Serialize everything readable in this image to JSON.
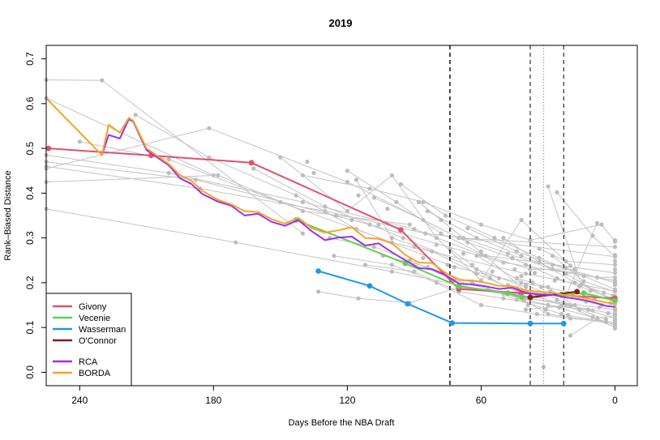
{
  "chart_data": {
    "type": "line",
    "title": "2019",
    "xlabel": "Days Before the NBA Draft",
    "ylabel": "Rank–Biased Distance",
    "xlim": [
      255,
      -10
    ],
    "ylim": [
      -0.03,
      0.73
    ],
    "x_ticks": [
      240,
      180,
      120,
      60,
      0
    ],
    "x_tick_labels": [
      "240",
      "180",
      "120",
      "60",
      "0"
    ],
    "y_ticks": [
      0.0,
      0.1,
      0.2,
      0.3,
      0.4,
      0.5,
      0.6,
      0.7
    ],
    "y_tick_labels": [
      "0.0",
      "0.1",
      "0.2",
      "0.3",
      "0.4",
      "0.5",
      "0.6",
      "0.7"
    ],
    "vertical_reference_lines": [
      {
        "x": 74,
        "style": "dashed"
      },
      {
        "x": 38,
        "style": "dashed"
      },
      {
        "x": 32,
        "style": "dotted"
      },
      {
        "x": 23,
        "style": "dashed"
      }
    ],
    "legend": {
      "position": "bottom-left"
    },
    "series": [
      {
        "name": "Givony",
        "color": "#df536b",
        "markers": true,
        "x": [
          254,
          208,
          163,
          96,
          70,
          42,
          0
        ],
        "y": [
          0.5,
          0.484,
          0.468,
          0.318,
          0.186,
          0.177,
          0.165
        ]
      },
      {
        "name": "Vecenie",
        "color": "#61d04f",
        "markers": true,
        "x": [
          143,
          94,
          70,
          48,
          42,
          24,
          14,
          0
        ],
        "y": [
          0.34,
          0.243,
          0.192,
          0.177,
          0.168,
          0.174,
          0.177,
          0.16
        ]
      },
      {
        "name": "Wasserman",
        "color": "#2297e6",
        "markers": true,
        "x": [
          133,
          110,
          93,
          73,
          38,
          23
        ],
        "y": [
          0.226,
          0.193,
          0.153,
          0.11,
          0.109,
          0.109
        ]
      },
      {
        "name": "O'Connor",
        "color": "#8b1a1a",
        "markers": true,
        "x": [
          38,
          17
        ],
        "y": [
          0.167,
          0.18
        ]
      },
      {
        "name": "RCA",
        "color": "#9f2ef0",
        "markers": false,
        "x": [
          230,
          227,
          222,
          218,
          216,
          210,
          200,
          195,
          190,
          185,
          178,
          172,
          166,
          160,
          154,
          148,
          142,
          136,
          130,
          124,
          118,
          112,
          106,
          100,
          94,
          88,
          82,
          76,
          70,
          64,
          58,
          52,
          46,
          40,
          34,
          28,
          22,
          16,
          10,
          4,
          0
        ],
        "y": [
          0.485,
          0.53,
          0.522,
          0.565,
          0.56,
          0.496,
          0.462,
          0.433,
          0.421,
          0.398,
          0.381,
          0.372,
          0.35,
          0.354,
          0.336,
          0.327,
          0.34,
          0.315,
          0.295,
          0.301,
          0.303,
          0.283,
          0.288,
          0.268,
          0.25,
          0.233,
          0.23,
          0.217,
          0.198,
          0.196,
          0.192,
          0.186,
          0.189,
          0.178,
          0.173,
          0.173,
          0.167,
          0.163,
          0.157,
          0.148,
          0.146
        ]
      },
      {
        "name": "BORDA",
        "color": "#f5a422",
        "markers": false,
        "x": [
          255,
          230,
          227,
          222,
          218,
          216,
          210,
          200,
          195,
          190,
          185,
          178,
          172,
          166,
          160,
          154,
          148,
          142,
          136,
          130,
          124,
          118,
          112,
          106,
          100,
          94,
          88,
          82,
          76,
          70,
          64,
          58,
          52,
          46,
          40,
          34,
          28,
          22,
          16,
          10,
          4,
          0
        ],
        "y": [
          0.612,
          0.485,
          0.553,
          0.535,
          0.568,
          0.562,
          0.5,
          0.465,
          0.44,
          0.428,
          0.405,
          0.385,
          0.375,
          0.36,
          0.358,
          0.342,
          0.332,
          0.345,
          0.322,
          0.312,
          0.317,
          0.324,
          0.3,
          0.298,
          0.288,
          0.262,
          0.245,
          0.244,
          0.222,
          0.206,
          0.205,
          0.2,
          0.193,
          0.192,
          0.183,
          0.18,
          0.178,
          0.172,
          0.168,
          0.162,
          0.156,
          0.152
        ]
      }
    ],
    "background_lines": [
      {
        "x": [
          255,
          230
        ],
        "y": [
          0.653,
          0.652
        ]
      },
      {
        "x": [
          230,
          140
        ],
        "y": [
          0.652,
          0.31
        ]
      },
      {
        "x": [
          255,
          180
        ],
        "y": [
          0.612,
          0.44
        ]
      },
      {
        "x": [
          255,
          200,
          140,
          90,
          60,
          0
        ],
        "y": [
          0.485,
          0.445,
          0.38,
          0.32,
          0.262,
          0.222
        ]
      },
      {
        "x": [
          255,
          188,
          110,
          50,
          0
        ],
        "y": [
          0.47,
          0.43,
          0.33,
          0.245,
          0.205
        ]
      },
      {
        "x": [
          255,
          186,
          130,
          85,
          0
        ],
        "y": [
          0.46,
          0.41,
          0.36,
          0.31,
          0.258
        ]
      },
      {
        "x": [
          255,
          182,
          120,
          70,
          0
        ],
        "y": [
          0.455,
          0.545,
          0.425,
          0.3,
          0.28
        ]
      },
      {
        "x": [
          255,
          178,
          140,
          92
        ],
        "y": [
          0.425,
          0.44,
          0.36,
          0.33
        ]
      },
      {
        "x": [
          255,
          170,
          100,
          40,
          0
        ],
        "y": [
          0.365,
          0.29,
          0.225,
          0.165,
          0.14
        ]
      },
      {
        "x": [
          240,
          200,
          150,
          100,
          40,
          0
        ],
        "y": [
          0.515,
          0.475,
          0.38,
          0.29,
          0.22,
          0.181
        ]
      },
      {
        "x": [
          215,
          182,
          143,
          116,
          72,
          42,
          0
        ],
        "y": [
          0.575,
          0.48,
          0.395,
          0.32,
          0.235,
          0.2,
          0.16
        ]
      },
      {
        "x": [
          162,
          130,
          95,
          62,
          40
        ],
        "y": [
          0.455,
          0.37,
          0.3,
          0.23,
          0.19
        ]
      },
      {
        "x": [
          150,
          120,
          100,
          80,
          60,
          42,
          20
        ],
        "y": [
          0.48,
          0.36,
          0.44,
          0.3,
          0.205,
          0.34,
          0.238
        ]
      },
      {
        "x": [
          140,
          110,
          86,
          60,
          38,
          6,
          0
        ],
        "y": [
          0.44,
          0.41,
          0.38,
          0.33,
          0.295,
          0.33,
          0.292
        ]
      },
      {
        "x": [
          133,
          115,
          92,
          70,
          50,
          30,
          10
        ],
        "y": [
          0.18,
          0.165,
          0.155,
          0.19,
          0.175,
          0.15,
          0.138
        ]
      },
      {
        "x": [
          128,
          108,
          92,
          72,
          45,
          30,
          0
        ],
        "y": [
          0.3,
          0.28,
          0.25,
          0.205,
          0.172,
          0.13,
          0.108
        ]
      },
      {
        "x": [
          126,
          100,
          80,
          60,
          35,
          20,
          0
        ],
        "y": [
          0.26,
          0.24,
          0.2,
          0.15,
          0.13,
          0.12,
          0.112
        ]
      },
      {
        "x": [
          120,
          98,
          78,
          58,
          38,
          18
        ],
        "y": [
          0.45,
          0.38,
          0.31,
          0.26,
          0.23,
          0.23
        ]
      },
      {
        "x": [
          116,
          100,
          82,
          62,
          43,
          22,
          0
        ],
        "y": [
          0.43,
          0.3,
          0.27,
          0.22,
          0.18,
          0.15,
          0.1
        ]
      },
      {
        "x": [
          112,
          90,
          70,
          50,
          30,
          10,
          0
        ],
        "y": [
          0.24,
          0.225,
          0.18,
          0.165,
          0.15,
          0.123,
          0.105
        ]
      },
      {
        "x": [
          108,
          86,
          66,
          46,
          26,
          0
        ],
        "y": [
          0.39,
          0.34,
          0.29,
          0.255,
          0.21,
          0.163
        ]
      },
      {
        "x": [
          104,
          84,
          64,
          44,
          24,
          4
        ],
        "y": [
          0.26,
          0.235,
          0.2,
          0.162,
          0.13,
          0.112
        ]
      },
      {
        "x": [
          96,
          76,
          54,
          34,
          14,
          0
        ],
        "y": [
          0.42,
          0.35,
          0.3,
          0.255,
          0.215,
          0.185
        ]
      },
      {
        "x": [
          88,
          68,
          48,
          28,
          8,
          0
        ],
        "y": [
          0.38,
          0.3,
          0.265,
          0.23,
          0.212,
          0.212
        ]
      },
      {
        "x": [
          84,
          62,
          42,
          22,
          0
        ],
        "y": [
          0.36,
          0.3,
          0.26,
          0.22,
          0.157
        ]
      },
      {
        "x": [
          78,
          58,
          40,
          24,
          6
        ],
        "y": [
          0.34,
          0.26,
          0.18,
          0.17,
          0.15
        ]
      },
      {
        "x": [
          74,
          56,
          38,
          20,
          0
        ],
        "y": [
          0.275,
          0.21,
          0.165,
          0.148,
          0.13
        ]
      },
      {
        "x": [
          66,
          44,
          28,
          0
        ],
        "y": [
          0.322,
          0.27,
          0.24,
          0.2
        ]
      },
      {
        "x": [
          62,
          40,
          20,
          0
        ],
        "y": [
          0.26,
          0.196,
          0.15,
          0.12
        ]
      },
      {
        "x": [
          50,
          34,
          18,
          0
        ],
        "y": [
          0.3,
          0.246,
          0.2,
          0.17
        ]
      },
      {
        "x": [
          44,
          30,
          16,
          4
        ],
        "y": [
          0.21,
          0.19,
          0.14,
          0.118
        ]
      },
      {
        "x": [
          40,
          24,
          8
        ],
        "y": [
          0.14,
          0.148,
          0.333
        ]
      },
      {
        "x": [
          34,
          22,
          0
        ],
        "y": [
          0.276,
          0.248,
          0.24
        ]
      },
      {
        "x": [
          30,
          15,
          0
        ],
        "y": [
          0.415,
          0.196,
          0.158
        ]
      },
      {
        "x": [
          28,
          14,
          0
        ],
        "y": [
          0.26,
          0.203,
          0.18
        ]
      },
      {
        "x": [
          26,
          10,
          0
        ],
        "y": [
          0.402,
          0.305,
          0.258
        ]
      },
      {
        "x": [
          20,
          8,
          0
        ],
        "y": [
          0.082,
          0.12,
          0.127
        ]
      }
    ],
    "background_points": [
      {
        "x": 138,
        "y": 0.47
      },
      {
        "x": 135,
        "y": 0.445
      },
      {
        "x": 125,
        "y": 0.35
      },
      {
        "x": 118,
        "y": 0.34
      },
      {
        "x": 115,
        "y": 0.395
      },
      {
        "x": 106,
        "y": 0.33
      },
      {
        "x": 102,
        "y": 0.365
      },
      {
        "x": 90,
        "y": 0.28
      },
      {
        "x": 86,
        "y": 0.255
      },
      {
        "x": 80,
        "y": 0.285
      },
      {
        "x": 75,
        "y": 0.24
      },
      {
        "x": 68,
        "y": 0.265
      },
      {
        "x": 64,
        "y": 0.24
      },
      {
        "x": 60,
        "y": 0.27
      },
      {
        "x": 57,
        "y": 0.185
      },
      {
        "x": 55,
        "y": 0.225
      },
      {
        "x": 52,
        "y": 0.21
      },
      {
        "x": 48,
        "y": 0.195
      },
      {
        "x": 46,
        "y": 0.255
      },
      {
        "x": 45,
        "y": 0.23
      },
      {
        "x": 44,
        "y": 0.188
      },
      {
        "x": 43,
        "y": 0.175
      },
      {
        "x": 42,
        "y": 0.215
      },
      {
        "x": 41,
        "y": 0.16
      },
      {
        "x": 40,
        "y": 0.24
      },
      {
        "x": 39,
        "y": 0.15
      },
      {
        "x": 37,
        "y": 0.2
      },
      {
        "x": 36,
        "y": 0.222
      },
      {
        "x": 35,
        "y": 0.17
      },
      {
        "x": 33,
        "y": 0.19
      },
      {
        "x": 32,
        "y": 0.012
      },
      {
        "x": 31,
        "y": 0.14
      },
      {
        "x": 29,
        "y": 0.18
      },
      {
        "x": 27,
        "y": 0.205
      },
      {
        "x": 26,
        "y": 0.162
      },
      {
        "x": 25,
        "y": 0.145
      },
      {
        "x": 22,
        "y": 0.232
      },
      {
        "x": 21,
        "y": 0.128
      },
      {
        "x": 19,
        "y": 0.172
      },
      {
        "x": 18,
        "y": 0.15
      },
      {
        "x": 16,
        "y": 0.192
      },
      {
        "x": 13,
        "y": 0.158
      },
      {
        "x": 12,
        "y": 0.14
      },
      {
        "x": 11,
        "y": 0.182
      },
      {
        "x": 9,
        "y": 0.165
      },
      {
        "x": 7,
        "y": 0.145
      },
      {
        "x": 5,
        "y": 0.178
      },
      {
        "x": 3,
        "y": 0.132
      },
      {
        "x": 2,
        "y": 0.155
      },
      {
        "x": 1,
        "y": 0.17
      },
      {
        "x": 0,
        "y": 0.295
      },
      {
        "x": 0,
        "y": 0.262
      },
      {
        "x": 0,
        "y": 0.248
      },
      {
        "x": 0,
        "y": 0.23
      },
      {
        "x": 0,
        "y": 0.195
      },
      {
        "x": 0,
        "y": 0.152
      },
      {
        "x": 0,
        "y": 0.143
      },
      {
        "x": 0,
        "y": 0.135
      },
      {
        "x": 0,
        "y": 0.116
      },
      {
        "x": 0,
        "y": 0.098
      }
    ],
    "styles": {
      "background_line_color": "#c4c4c4",
      "background_point_color": "#bdbdbd",
      "reference_line_color": "#000000",
      "axis_color": "#000000",
      "background_color": "#ffffff"
    }
  }
}
